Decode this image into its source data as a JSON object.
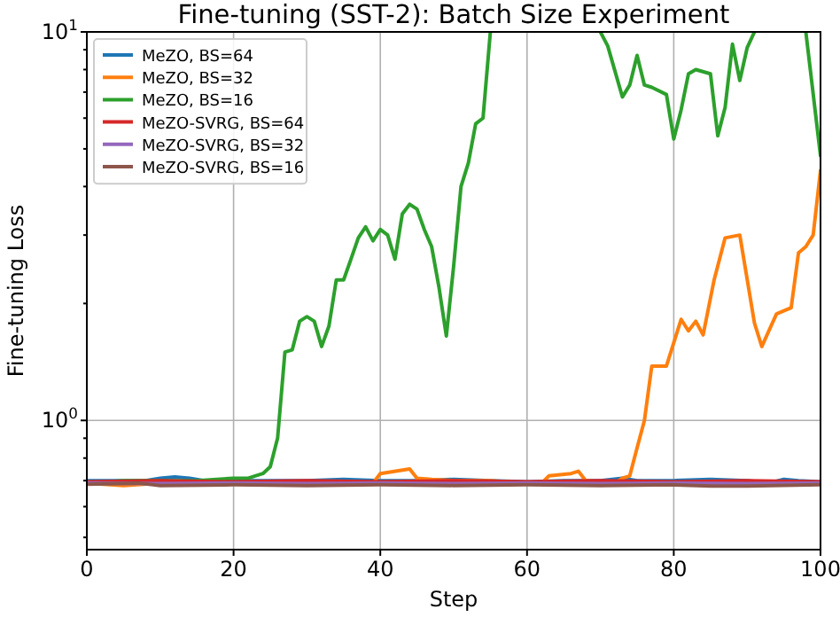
{
  "chart_data": {
    "type": "line",
    "title": "Fine-tuning (SST-2): Batch Size Experiment",
    "xlabel": "Step",
    "ylabel": "Fine-tuning Loss",
    "log": "y",
    "grid": true,
    "legend": "top left",
    "line_style": "solid",
    "marker": "none",
    "xlim": [
      0,
      100
    ],
    "xticks": [
      0,
      20,
      40,
      60,
      80,
      100
    ],
    "ylim": [
      0.465,
      10
    ],
    "yticks": [
      {
        "value": 0.5,
        "label": null
      },
      {
        "value": 0.6,
        "label": null
      },
      {
        "value": 0.7,
        "label": null
      },
      {
        "value": 0.8,
        "label": null
      },
      {
        "value": 0.9,
        "label": null
      },
      {
        "value": 1,
        "label": "10$^{0}$"
      },
      {
        "value": 2,
        "label": null
      },
      {
        "value": 3,
        "label": null
      },
      {
        "value": 4,
        "label": null
      },
      {
        "value": 5,
        "label": null
      },
      {
        "value": 6,
        "label": null
      },
      {
        "value": 7,
        "label": null
      },
      {
        "value": 8,
        "label": null
      },
      {
        "value": 9,
        "label": null
      },
      {
        "value": 10,
        "label": "10$^{1}$"
      }
    ],
    "series": [
      {
        "name": "MeZO, BS=64",
        "color": "#1f77b4",
        "x": [
          0,
          5,
          8,
          10,
          12,
          14,
          16,
          20,
          25,
          30,
          35,
          40,
          45,
          50,
          55,
          60,
          65,
          70,
          73,
          75,
          80,
          85,
          90,
          93,
          95,
          97,
          100
        ],
        "values": [
          0.7,
          0.7,
          0.7,
          0.71,
          0.715,
          0.71,
          0.7,
          0.7,
          0.7,
          0.7,
          0.705,
          0.7,
          0.7,
          0.705,
          0.7,
          0.695,
          0.7,
          0.7,
          0.71,
          0.7,
          0.7,
          0.705,
          0.7,
          0.69,
          0.705,
          0.7,
          0.695
        ]
      },
      {
        "name": "MeZO, BS=32",
        "color": "#ff7f0e",
        "x": [
          0,
          5,
          10,
          20,
          30,
          35,
          39,
          40,
          44,
          45,
          47,
          50,
          55,
          60,
          62,
          63,
          66,
          67,
          68,
          72,
          73,
          74,
          75,
          76,
          77,
          79,
          81,
          82,
          83,
          84,
          85.5,
          87,
          89,
          91,
          92,
          94,
          96,
          97,
          98,
          99,
          100
        ],
        "values": [
          0.69,
          0.68,
          0.69,
          0.69,
          0.69,
          0.685,
          0.69,
          0.73,
          0.75,
          0.71,
          0.705,
          0.7,
          0.7,
          0.69,
          0.69,
          0.72,
          0.73,
          0.74,
          0.7,
          0.69,
          0.71,
          0.72,
          0.85,
          1.0,
          1.38,
          1.38,
          1.82,
          1.7,
          1.8,
          1.66,
          2.3,
          2.95,
          3.0,
          1.78,
          1.55,
          1.88,
          1.95,
          2.7,
          2.8,
          3.0,
          4.4
        ]
      },
      {
        "name": "MeZO, BS=16",
        "color": "#2ca02c",
        "x": [
          0,
          5,
          10,
          15,
          20,
          22,
          24,
          25,
          26,
          27,
          28,
          29,
          30,
          31,
          32,
          33,
          34,
          35,
          36,
          37,
          38,
          39,
          40,
          41,
          42,
          43,
          44,
          45,
          46,
          47,
          48,
          49,
          50,
          51,
          52,
          53,
          54,
          55,
          56,
          70,
          71,
          73,
          74,
          75,
          76,
          77,
          79,
          80,
          81,
          82,
          83,
          85,
          86,
          87,
          88,
          89,
          90,
          91,
          92,
          98,
          100
        ],
        "values": [
          0.69,
          0.7,
          0.7,
          0.7,
          0.71,
          0.71,
          0.73,
          0.76,
          0.9,
          1.5,
          1.52,
          1.8,
          1.85,
          1.8,
          1.55,
          1.75,
          2.3,
          2.3,
          2.6,
          2.95,
          3.15,
          2.9,
          3.1,
          3.0,
          2.6,
          3.4,
          3.6,
          3.5,
          3.1,
          2.8,
          2.2,
          1.65,
          2.5,
          4.0,
          4.6,
          5.8,
          6.0,
          10,
          null,
          10,
          9.2,
          6.8,
          7.3,
          8.7,
          7.3,
          7.2,
          6.9,
          5.3,
          6.3,
          7.8,
          8.0,
          7.8,
          5.4,
          6.4,
          9.3,
          7.5,
          9.1,
          10,
          null,
          10,
          4.8
        ]
      },
      {
        "name": "MeZO-SVRG, BS=64",
        "color": "#d62728",
        "x": [
          0,
          10,
          20,
          30,
          40,
          50,
          60,
          70,
          80,
          90,
          100
        ],
        "values": [
          0.695,
          0.7,
          0.695,
          0.7,
          0.695,
          0.7,
          0.695,
          0.7,
          0.695,
          0.7,
          0.695
        ]
      },
      {
        "name": "MeZO-SVRG, BS=32",
        "color": "#9467bd",
        "x": [
          0,
          10,
          20,
          30,
          40,
          50,
          60,
          70,
          80,
          90,
          100
        ],
        "values": [
          0.69,
          0.688,
          0.69,
          0.688,
          0.69,
          0.688,
          0.69,
          0.688,
          0.69,
          0.688,
          0.69
        ]
      },
      {
        "name": "MeZO-SVRG, BS=16",
        "color": "#8c564b",
        "x": [
          0,
          7,
          10,
          20,
          30,
          40,
          50,
          60,
          70,
          80,
          85,
          90,
          100
        ],
        "values": [
          0.685,
          0.69,
          0.68,
          0.683,
          0.68,
          0.683,
          0.68,
          0.683,
          0.68,
          0.683,
          0.678,
          0.678,
          0.683
        ]
      }
    ]
  }
}
